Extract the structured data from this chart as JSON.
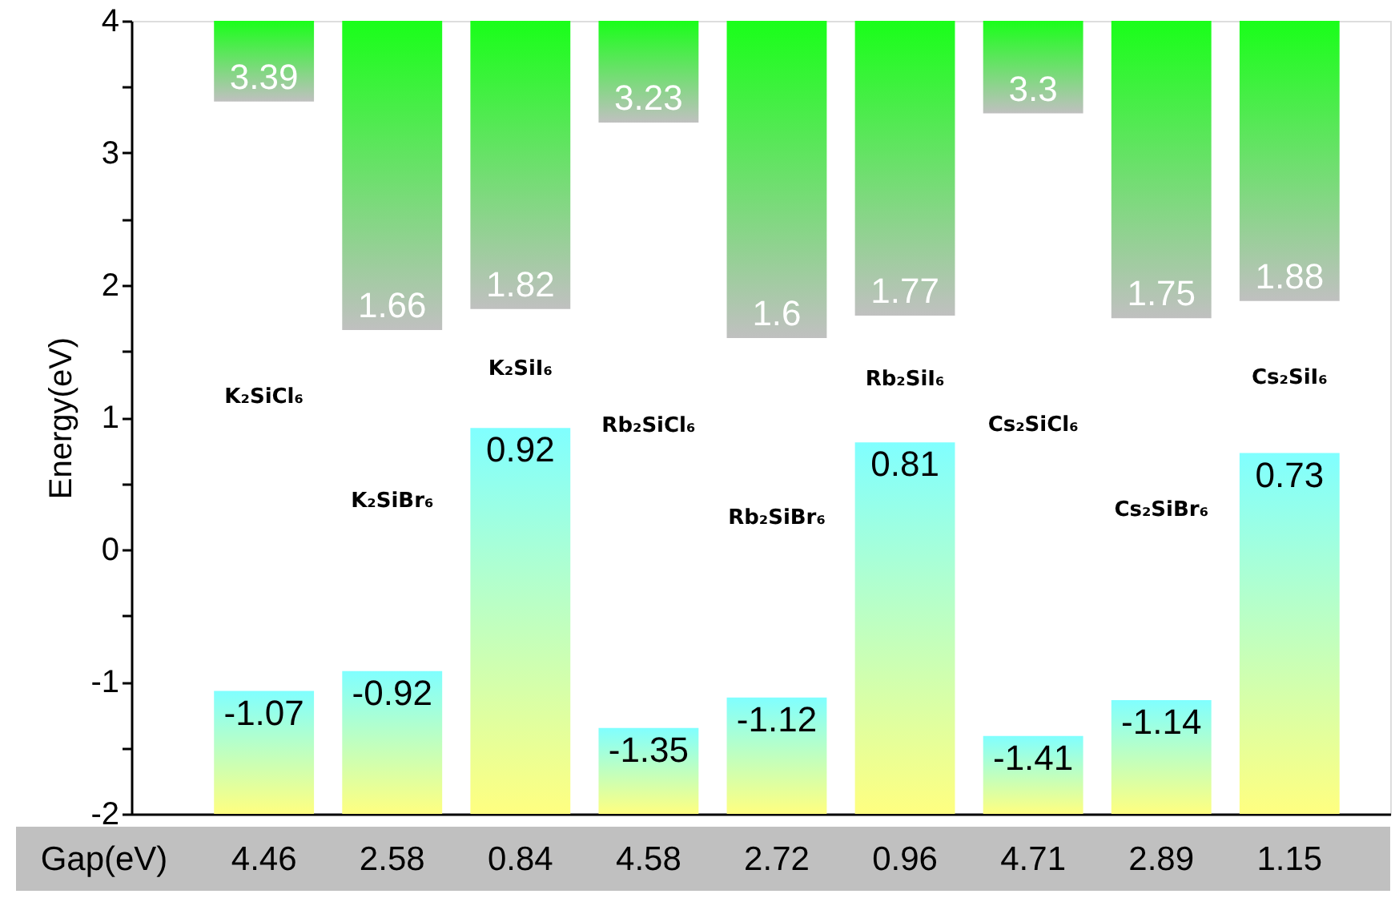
{
  "chart_data": {
    "type": "bar",
    "ylabel": "Energy(eV)",
    "categories": [
      "K₂SiCl₆",
      "K₂SiBr₆",
      "K₂SiI₆",
      "Rb₂SiCl₆",
      "Rb₂SiBr₆",
      "Rb₂SiI₆",
      "Cs₂SiCl₆",
      "Cs₂SiBr₆",
      "Cs₂SiI₆"
    ],
    "series": [
      {
        "color": "#19ff19",
        "base": [
          3.39,
          1.66,
          1.82,
          3.23,
          1.6,
          1.77,
          3.3,
          1.75,
          1.88
        ],
        "values": [
          0.61,
          2.34,
          2.18,
          0.77,
          2.4,
          2.23,
          0.7,
          2.25,
          2.12
        ]
      },
      {
        "color": "#80ffff",
        "base": [
          -2,
          -2,
          -2,
          -2,
          -2,
          -2,
          -2,
          -2,
          -2
        ],
        "values": [
          0.93,
          1.08,
          2.92,
          0.65,
          0.88,
          2.81,
          0.59,
          0.86,
          2.73
        ]
      }
    ],
    "ylim": [
      -2,
      4
    ],
    "yticks": [
      -2,
      {
        "value": -1.5,
        "label": null
      },
      -1,
      {
        "value": -0.5,
        "label": null
      },
      0,
      {
        "value": 0.5,
        "label": null
      },
      1,
      {
        "value": 1.5,
        "label": null
      },
      2,
      {
        "value": 2.5,
        "label": null
      },
      3,
      {
        "value": 3.5,
        "label": null
      },
      4
    ],
    "grid": false,
    "tick_labels": "y",
    "annotations": [
      "Gap(eV)",
      "4.46",
      "2.58",
      "0.84",
      "4.58",
      "2.72",
      "0.96",
      "4.71",
      "2.89",
      "1.15",
      {
        "text": "3.39",
        "x": "K₂SiCl₆",
        "y": 3.39
      },
      {
        "text": "1.66",
        "x": "K₂SiBr₆",
        "y": 1.66
      },
      {
        "text": "1.82",
        "x": "K₂SiI₆",
        "y": 1.82
      },
      {
        "text": "3.23",
        "x": "Rb₂SiCl₆",
        "y": 3.23
      },
      {
        "text": "1.6",
        "x": "Rb₂SiBr₆",
        "y": 1.6
      },
      {
        "text": "1.77",
        "x": "Rb₂SiI₆",
        "y": 1.77
      },
      {
        "text": "3.3",
        "x": "Cs₂SiCl₆",
        "y": 3.3
      },
      {
        "text": "1.75",
        "x": "Cs₂SiBr₆",
        "y": 1.75
      },
      {
        "text": "1.88",
        "x": "Cs₂SiI₆",
        "y": 1.88
      },
      {
        "text": "-1.07",
        "x": "K₂SiCl₆",
        "y": -1.07
      },
      {
        "text": "-0.92",
        "x": "K₂SiBr₆",
        "y": -0.92
      },
      {
        "text": "0.92",
        "x": "K₂SiI₆",
        "y": 0.92
      },
      {
        "text": "-1.35",
        "x": "Rb₂SiCl₆",
        "y": -1.35
      },
      {
        "text": "-1.12",
        "x": "Rb₂SiBr₆",
        "y": -1.12
      },
      {
        "text": "0.81",
        "x": "Rb₂SiI₆",
        "y": 0.81
      },
      {
        "text": "-1.41",
        "x": "Cs₂SiCl₆",
        "y": -1.41
      },
      {
        "text": "-1.14",
        "x": "Cs₂SiBr₆",
        "y": -1.14
      },
      {
        "text": "0.73",
        "x": "Cs₂SiI₆",
        "y": 0.73
      }
    ]
  }
}
